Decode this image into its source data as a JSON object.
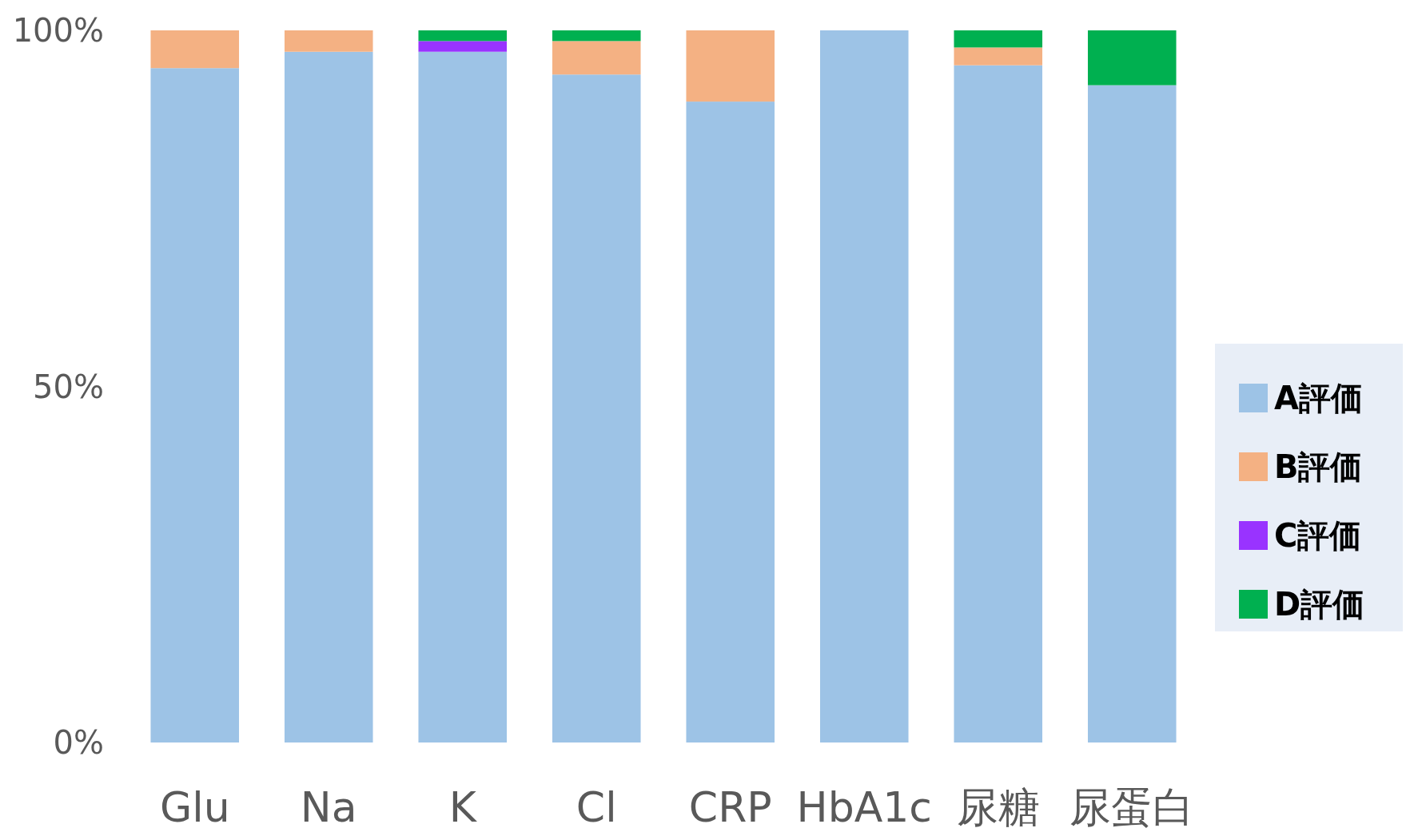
{
  "chart_data": {
    "type": "bar",
    "stacked": true,
    "categories": [
      "Glu",
      "Na",
      "K",
      "Cl",
      "CRP",
      "HbA1c",
      "尿糖",
      "尿蛋白"
    ],
    "series": [
      {
        "name": "A評価",
        "color": "#9dc3e6",
        "values": [
          94.7,
          97,
          97,
          93.8,
          90,
          100,
          95.1,
          92.3
        ]
      },
      {
        "name": "B評価",
        "color": "#f4b183",
        "values": [
          5.3,
          3,
          0,
          4.7,
          10,
          0,
          2.5,
          0
        ]
      },
      {
        "name": "C評価",
        "color": "#9933ff",
        "values": [
          0,
          0,
          1.5,
          0,
          0,
          0,
          0,
          0
        ]
      },
      {
        "name": "D評価",
        "color": "#00b050",
        "values": [
          0,
          0,
          1.5,
          1.5,
          0,
          0,
          2.4,
          7.7
        ]
      }
    ],
    "ylim": [
      0,
      100
    ],
    "yticks": [
      {
        "value": 0,
        "label": "0%"
      },
      {
        "value": 50,
        "label": "50%"
      },
      {
        "value": 100,
        "label": "100%"
      }
    ],
    "grid": false,
    "legend": "right"
  }
}
